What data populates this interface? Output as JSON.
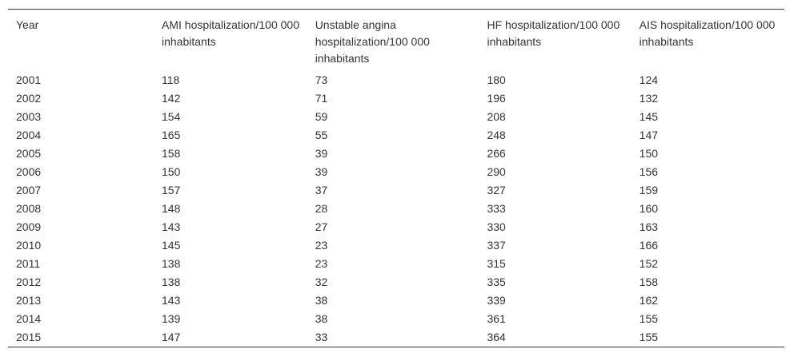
{
  "table": {
    "header": [
      "Year",
      "AMI hospitalization/100 000 inhabitants",
      "Unstable angina hospitalization/100 000 inhabitants",
      "HF hospitalization/100 000 inhabitants",
      "AIS hospitalization/100 000 inhabitants"
    ],
    "rows": [
      [
        2001,
        118,
        73,
        180,
        124
      ],
      [
        2002,
        142,
        71,
        196,
        132
      ],
      [
        2003,
        154,
        59,
        208,
        145
      ],
      [
        2004,
        165,
        55,
        248,
        147
      ],
      [
        2005,
        158,
        39,
        266,
        150
      ],
      [
        2006,
        150,
        39,
        290,
        156
      ],
      [
        2007,
        157,
        37,
        327,
        159
      ],
      [
        2008,
        148,
        28,
        333,
        160
      ],
      [
        2009,
        143,
        27,
        330,
        163
      ],
      [
        2010,
        145,
        23,
        337,
        166
      ],
      [
        2011,
        138,
        23,
        315,
        152
      ],
      [
        2012,
        138,
        32,
        335,
        158
      ],
      [
        2013,
        143,
        38,
        339,
        162
      ],
      [
        2014,
        139,
        38,
        361,
        155
      ],
      [
        2015,
        147,
        33,
        364,
        155
      ]
    ]
  }
}
